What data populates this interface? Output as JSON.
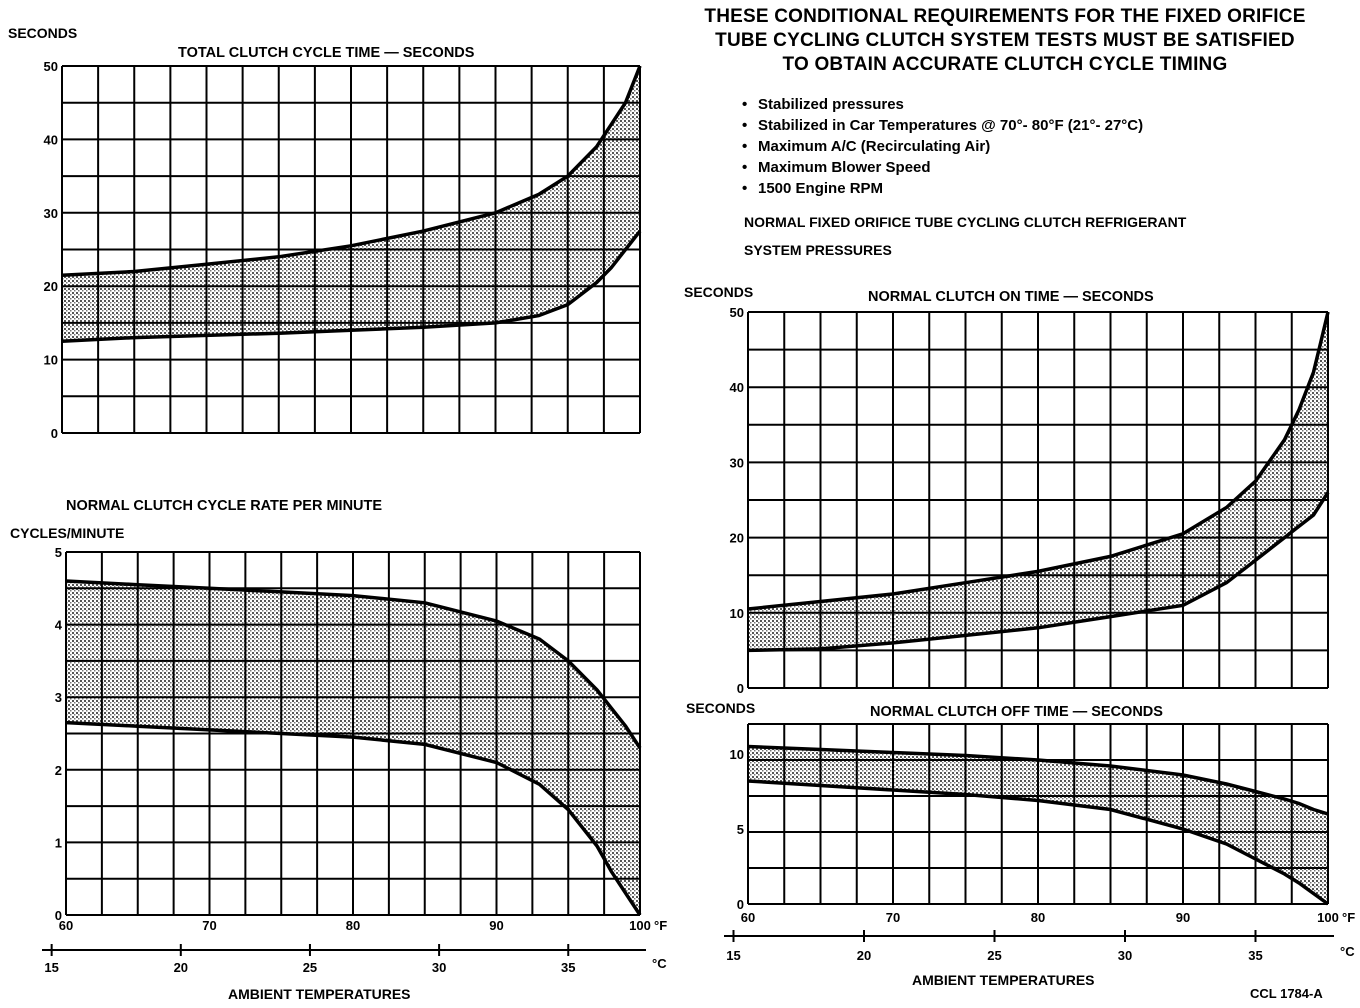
{
  "header": {
    "line1": "THESE CONDITIONAL REQUIREMENTS FOR THE FIXED  ORIFICE",
    "line2": "TUBE CYCLING CLUTCH SYSTEM  TESTS MUST BE SATISFIED",
    "line3": "TO OBTAIN ACCURATE CLUTCH CYCLE TIMING"
  },
  "requirements": [
    "Stabilized pressures",
    "Stabilized in Car Temperatures @ 70°- 80°F (21°- 27°C)",
    "Maximum A/C (Recirculating Air)",
    "Maximum Blower Speed",
    "1500 Engine RPM"
  ],
  "pressures_heading_1": "NORMAL FIXED ORIFICE TUBE CYCLING CLUTCH REFRIGERANT",
  "pressures_heading_2": "SYSTEM PRESSURES",
  "footer_code": "CCL 1784-A",
  "axis_unit_f": "°F",
  "axis_unit_c": "°C",
  "chart_data": [
    {
      "type": "area",
      "title": "TOTAL CLUTCH CYCLE TIME — SECONDS",
      "ylabel": "SECONDS",
      "xlabel": "",
      "xlim": [
        60,
        100
      ],
      "ylim": [
        0,
        50
      ],
      "yticks": [
        "0",
        "10",
        "20",
        "30",
        "40",
        "50"
      ],
      "grid": true,
      "series": [
        {
          "x": [
            60,
            65,
            70,
            75,
            80,
            85,
            90,
            93,
            95,
            97,
            98,
            99,
            100
          ],
          "values": [
            21.5,
            22,
            23,
            24,
            25.5,
            27.5,
            30,
            32.5,
            35,
            39,
            42,
            45,
            50
          ]
        },
        {
          "x": [
            60,
            65,
            70,
            75,
            80,
            85,
            90,
            93,
            95,
            97,
            98,
            99,
            100
          ],
          "values": [
            12.5,
            13,
            13.3,
            13.6,
            14,
            14.4,
            15,
            16,
            17.5,
            20.5,
            22.5,
            25,
            27.5
          ]
        }
      ]
    },
    {
      "type": "area",
      "title": "NORMAL CLUTCH CYCLE RATE PER MINUTE",
      "ylabel": "CYCLES/MINUTE",
      "xlabel": "AMBIENT TEMPERATURES",
      "xlim": [
        60,
        100
      ],
      "ylim": [
        0,
        5
      ],
      "yticks": [
        "0",
        "1",
        "2",
        "3",
        "4",
        "5"
      ],
      "xticks_f": [
        "60",
        "70",
        "80",
        "90",
        "100"
      ],
      "xticks_c": [
        "15",
        "20",
        "25",
        "30",
        "35"
      ],
      "grid": true,
      "series": [
        {
          "x": [
            60,
            65,
            70,
            75,
            80,
            85,
            90,
            93,
            95,
            97,
            98,
            99,
            100
          ],
          "values": [
            4.6,
            4.55,
            4.5,
            4.45,
            4.4,
            4.3,
            4.05,
            3.8,
            3.5,
            3.1,
            2.85,
            2.6,
            2.3
          ]
        },
        {
          "x": [
            60,
            65,
            70,
            75,
            80,
            85,
            90,
            93,
            95,
            97,
            98,
            99,
            100
          ],
          "values": [
            2.65,
            2.6,
            2.55,
            2.5,
            2.45,
            2.35,
            2.1,
            1.8,
            1.45,
            0.95,
            0.6,
            0.3,
            0
          ]
        }
      ]
    },
    {
      "type": "area",
      "title": "NORMAL CLUTCH ON TIME — SECONDS",
      "ylabel": "SECONDS",
      "xlabel": "",
      "xlim": [
        60,
        100
      ],
      "ylim": [
        0,
        50
      ],
      "yticks": [
        "0",
        "10",
        "20",
        "30",
        "40",
        "50"
      ],
      "grid": true,
      "series": [
        {
          "x": [
            60,
            65,
            70,
            75,
            80,
            85,
            90,
            93,
            95,
            97,
            98,
            99,
            99.5,
            100
          ],
          "values": [
            10.5,
            11.5,
            12.5,
            14,
            15.5,
            17.5,
            20.5,
            24,
            27.5,
            33,
            37,
            42,
            46,
            50
          ]
        },
        {
          "x": [
            60,
            65,
            70,
            75,
            80,
            85,
            90,
            93,
            95,
            97,
            98,
            99,
            100
          ],
          "values": [
            5,
            5.2,
            6,
            7,
            8,
            9.5,
            11,
            14,
            17,
            20,
            21.5,
            23,
            26
          ]
        }
      ]
    },
    {
      "type": "area",
      "title": "NORMAL CLUTCH OFF TIME — SECONDS",
      "ylabel": "SECONDS",
      "xlabel": "AMBIENT TEMPERATURES",
      "xlim": [
        60,
        100
      ],
      "ylim": [
        0,
        12
      ],
      "yticks": [
        "0",
        "5",
        "10"
      ],
      "xticks_f": [
        "60",
        "70",
        "80",
        "90",
        "100"
      ],
      "xticks_c": [
        "15",
        "20",
        "25",
        "30",
        "35"
      ],
      "grid": true,
      "series": [
        {
          "x": [
            60,
            65,
            70,
            75,
            80,
            85,
            90,
            93,
            95,
            97,
            98,
            99,
            100
          ],
          "values": [
            10.5,
            10.3,
            10.1,
            9.9,
            9.6,
            9.2,
            8.6,
            8.0,
            7.5,
            7.0,
            6.7,
            6.3,
            6.0
          ]
        },
        {
          "x": [
            60,
            65,
            70,
            75,
            80,
            85,
            90,
            93,
            95,
            97,
            98,
            99,
            100
          ],
          "values": [
            8.2,
            7.9,
            7.6,
            7.3,
            6.9,
            6.3,
            5.0,
            4.0,
            3.0,
            2.0,
            1.4,
            0.7,
            0
          ]
        }
      ]
    }
  ]
}
